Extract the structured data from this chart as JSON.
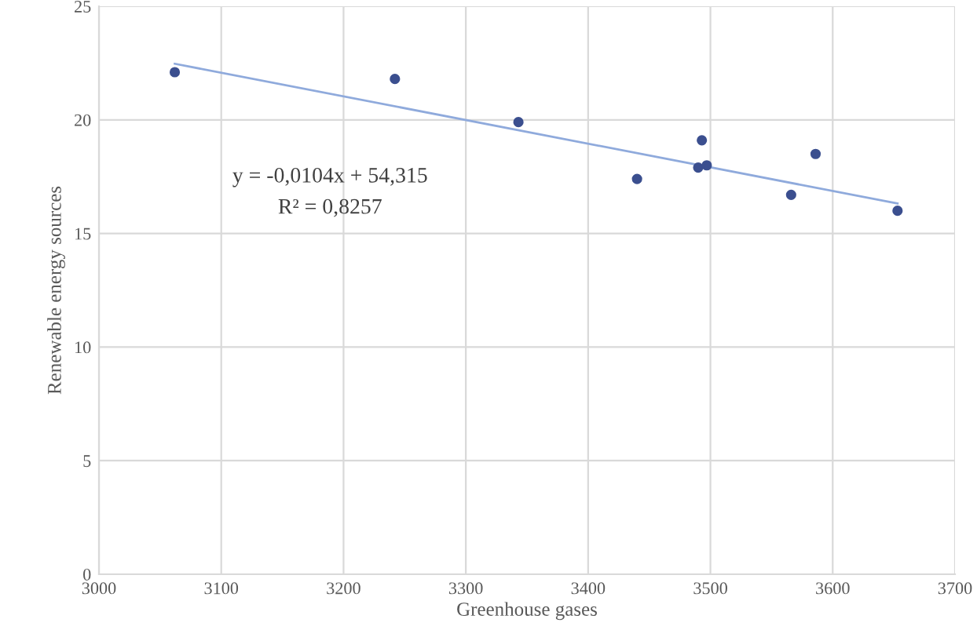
{
  "chart_data": {
    "type": "scatter",
    "xlabel": "Greenhouse gases",
    "ylabel": "Renewable energy sources",
    "xlim": [
      3000,
      3700
    ],
    "xticks": [
      3000,
      3100,
      3200,
      3300,
      3400,
      3500,
      3600,
      3700
    ],
    "ylim": [
      0,
      25
    ],
    "yticks": [
      0,
      5,
      10,
      15,
      20,
      25
    ],
    "grid": true,
    "series": [
      {
        "marker": "circle",
        "color": "#3b4f8f",
        "x": [
          3062,
          3242,
          3343,
          3440,
          3490,
          3493,
          3497,
          3566,
          3586,
          3653
        ],
        "values": [
          22.1,
          21.8,
          19.9,
          17.4,
          17.9,
          19.1,
          18.0,
          16.7,
          18.5,
          16.0
        ]
      },
      {
        "type": "line",
        "color": "#8faadc",
        "x": [
          3062,
          3653
        ],
        "values": [
          22.47,
          16.32
        ]
      }
    ],
    "annotations": [
      "y = -0,0104x + 54,315",
      "R² = 0,8257"
    ]
  }
}
